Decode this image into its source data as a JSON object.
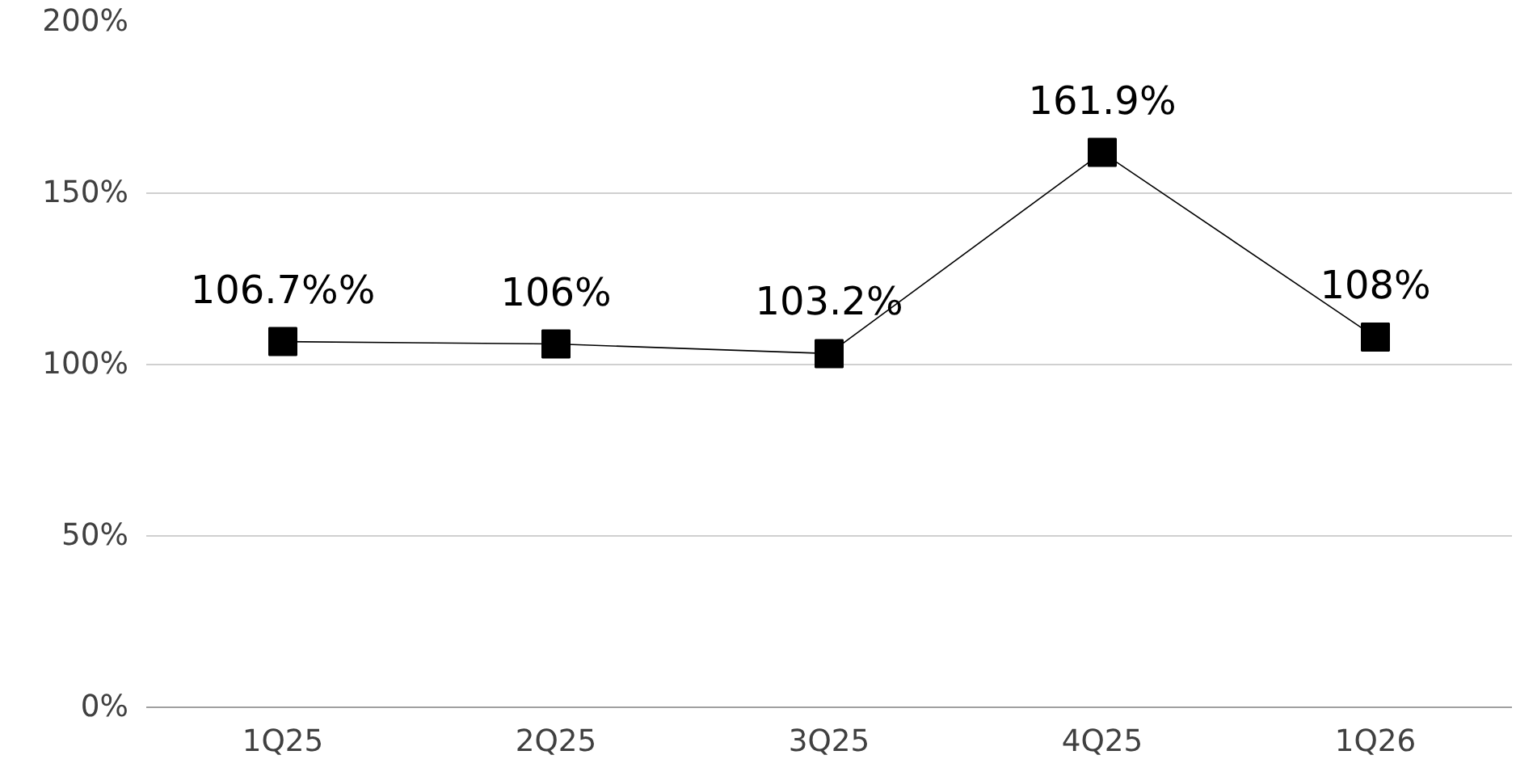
{
  "chart_data": {
    "type": "line",
    "categories": [
      "1Q25",
      "2Q25",
      "3Q25",
      "4Q25",
      "1Q26"
    ],
    "series": [
      {
        "color": "#000000",
        "values": [
          106.7,
          106,
          103.2,
          161.9,
          108
        ],
        "value_labels": [
          "106.7%%",
          "106%",
          "103.2%",
          "161.9%",
          "108%"
        ]
      }
    ],
    "ylim": [
      0,
      200
    ],
    "yticks": [
      {
        "value": 0,
        "label": "0%"
      },
      {
        "value": 50,
        "label": "50%"
      },
      {
        "value": 100,
        "label": "100%"
      },
      {
        "value": 150,
        "label": "150%"
      },
      {
        "value": 200,
        "label": "200%"
      }
    ],
    "grid": "y",
    "marker": "square",
    "line_style": "solid"
  }
}
